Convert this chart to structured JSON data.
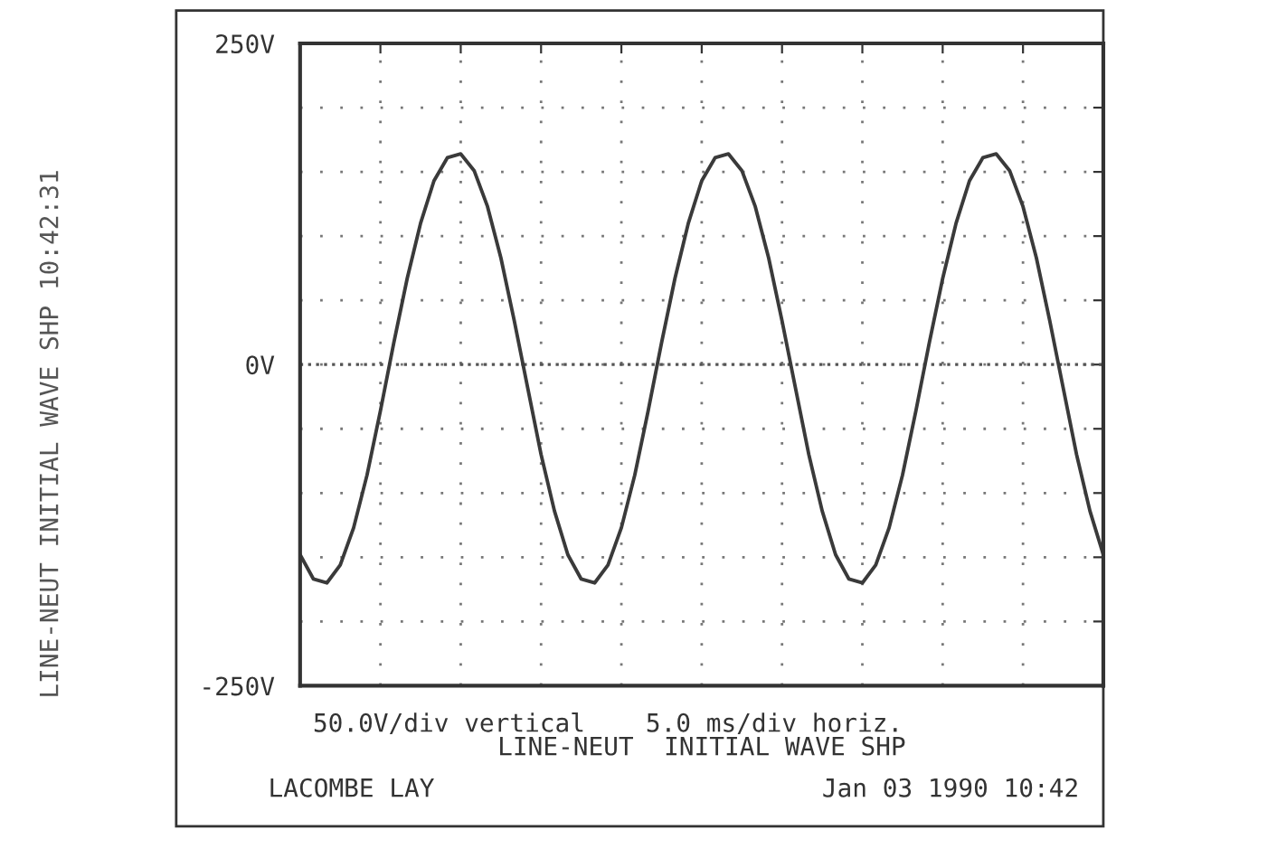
{
  "chart_data": {
    "type": "line",
    "categories": [
      null,
      null,
      null,
      null,
      null,
      null,
      null,
      null,
      null,
      null,
      null,
      null,
      null,
      null,
      null,
      null,
      null,
      null,
      null,
      null,
      null,
      null,
      null,
      null,
      null,
      null,
      null,
      null,
      null,
      null,
      null,
      null,
      null,
      null,
      null,
      null,
      null,
      null,
      null,
      null,
      null,
      null,
      null,
      null,
      null,
      null,
      null,
      null,
      null,
      null,
      null,
      null,
      null,
      null,
      null,
      null,
      null,
      null,
      null,
      null,
      null
    ],
    "series": [
      {
        "color": "#3a3a3a",
        "values": [
          -148,
          -167,
          -170,
          -156,
          -127,
          -86,
          -36,
          17,
          67,
          110,
          143,
          161,
          164,
          151,
          123,
          83,
          34,
          -18,
          -70,
          -114,
          -148,
          -167,
          -170,
          -156,
          -127,
          -86,
          -36,
          17,
          67,
          110,
          143,
          161,
          164,
          151,
          123,
          83,
          34,
          -18,
          -70,
          -114,
          -148,
          -167,
          -170,
          -156,
          -127,
          -86,
          -36,
          17,
          67,
          110,
          143,
          161,
          164,
          151,
          123,
          83,
          34,
          -18,
          -70,
          -114,
          -148
        ]
      }
    ],
    "ylim": [
      -250,
      250
    ],
    "yticks": [
      {
        "value": -250,
        "label": "-250V"
      },
      {
        "value": -200,
        "label": null
      },
      {
        "value": -150,
        "label": null
      },
      {
        "value": -100,
        "label": null
      },
      {
        "value": -50,
        "label": null
      },
      {
        "value": 0,
        "label": "0V"
      },
      {
        "value": 50,
        "label": null
      },
      {
        "value": 100,
        "label": null
      },
      {
        "value": 150,
        "label": null
      },
      {
        "value": 200,
        "label": null
      },
      {
        "value": 250,
        "label": "250V"
      }
    ],
    "grid": true,
    "tick_labels": "y",
    "line_style": "solid",
    "marker": "none",
    "ref_lines": [
      {
        "axis": "y",
        "value": 0,
        "line_style": "dotted",
        "color": "#555555"
      }
    ],
    "xlabel": "LINE-NEUT  INITIAL WAVE SHP",
    "annotations": [
      "50.0V/div vertical    5.0 ms/div horiz.",
      "LACOMBE LAY",
      "Jan 03 1990 10:42",
      "LINE-NEUT INITIAL WAVE SHP 10:42:31"
    ]
  }
}
